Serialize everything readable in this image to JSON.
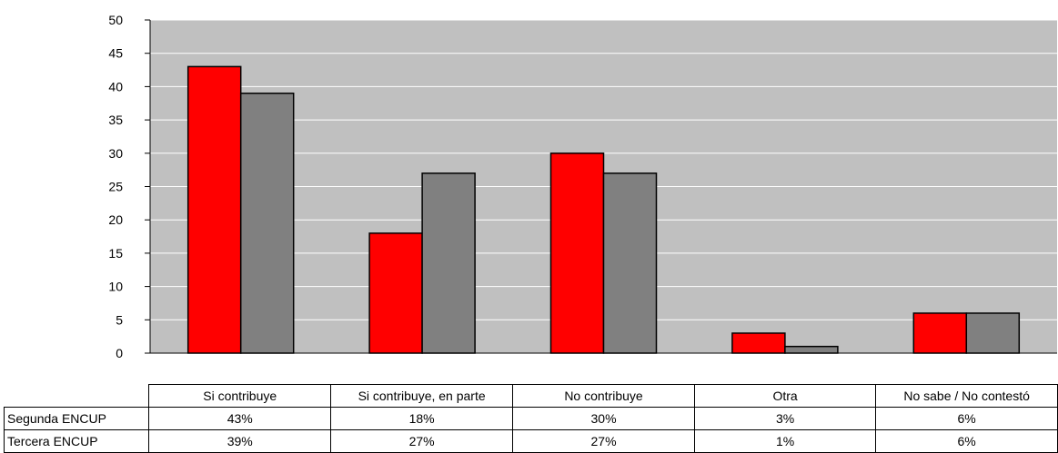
{
  "chart_data": {
    "type": "bar",
    "categories": [
      "Si contribuye",
      "Si contribuye, en parte",
      "No contribuye",
      "Otra",
      "No sabe / No contestó"
    ],
    "series": [
      {
        "name": "Segunda ENCUP",
        "values": [
          43,
          18,
          30,
          3,
          6
        ],
        "color": "#ff0000",
        "table_values": [
          "43%",
          "18%",
          "30%",
          "3%",
          "6%"
        ]
      },
      {
        "name": "Tercera ENCUP",
        "values": [
          39,
          27,
          27,
          1,
          6
        ],
        "color": "#808080",
        "table_values": [
          "39%",
          "27%",
          "27%",
          "1%",
          "6%"
        ]
      }
    ],
    "ylim": [
      0,
      50
    ],
    "yticks": [
      0,
      5,
      10,
      15,
      20,
      25,
      30,
      35,
      40,
      45,
      50
    ],
    "grid": true,
    "plot_background": "#c0c0c0",
    "data_table": true
  }
}
